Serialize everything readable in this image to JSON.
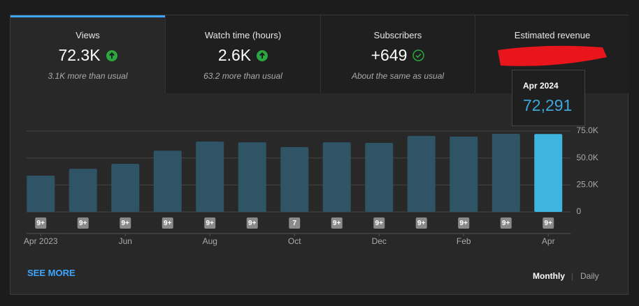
{
  "tabs": [
    {
      "label": "Views",
      "value": "72.3K",
      "note": "3.1K more than usual"
    },
    {
      "label": "Watch time (hours)",
      "value": "2.6K",
      "note": "63.2 more than usual"
    },
    {
      "label": "Subscribers",
      "value": "+649",
      "note": "About the same as usual"
    },
    {
      "label": "Estimated revenue"
    }
  ],
  "chart_data": {
    "type": "bar",
    "categories": [
      "Apr 2023",
      null,
      "Jun",
      null,
      "Aug",
      null,
      "Oct",
      null,
      "Dec",
      null,
      "Feb",
      null,
      "Apr"
    ],
    "values": [
      33600,
      40000,
      44600,
      56800,
      65200,
      64600,
      60100,
      64600,
      64000,
      70400,
      69800,
      72400,
      72291
    ],
    "colors": [
      "#2e5465",
      "#2e5465",
      "#2e5465",
      "#2e5465",
      "#2e5465",
      "#2e5465",
      "#2e5465",
      "#2e5465",
      "#2e5465",
      "#2e5465",
      "#2e5465",
      "#2e5465",
      "#3eb4de"
    ],
    "badges": [
      "9+",
      "9+",
      "9+",
      "9+",
      "9+",
      "9+",
      "7",
      "9+",
      "9+",
      "9+",
      "9+",
      "9+",
      "9+"
    ],
    "ylim": [
      0,
      75000
    ],
    "yticks": [
      0,
      {
        "value": 25000,
        "label": "25.0K"
      },
      {
        "value": 50000,
        "label": "50.0K"
      },
      {
        "value": 75000,
        "label": "75.0K"
      }
    ],
    "grid": true,
    "tooltip": {
      "date": "Apr 2024",
      "value_label": "72,291"
    }
  },
  "footer": {
    "link": "SEE MORE",
    "options": [
      "Monthly",
      "Daily"
    ]
  }
}
